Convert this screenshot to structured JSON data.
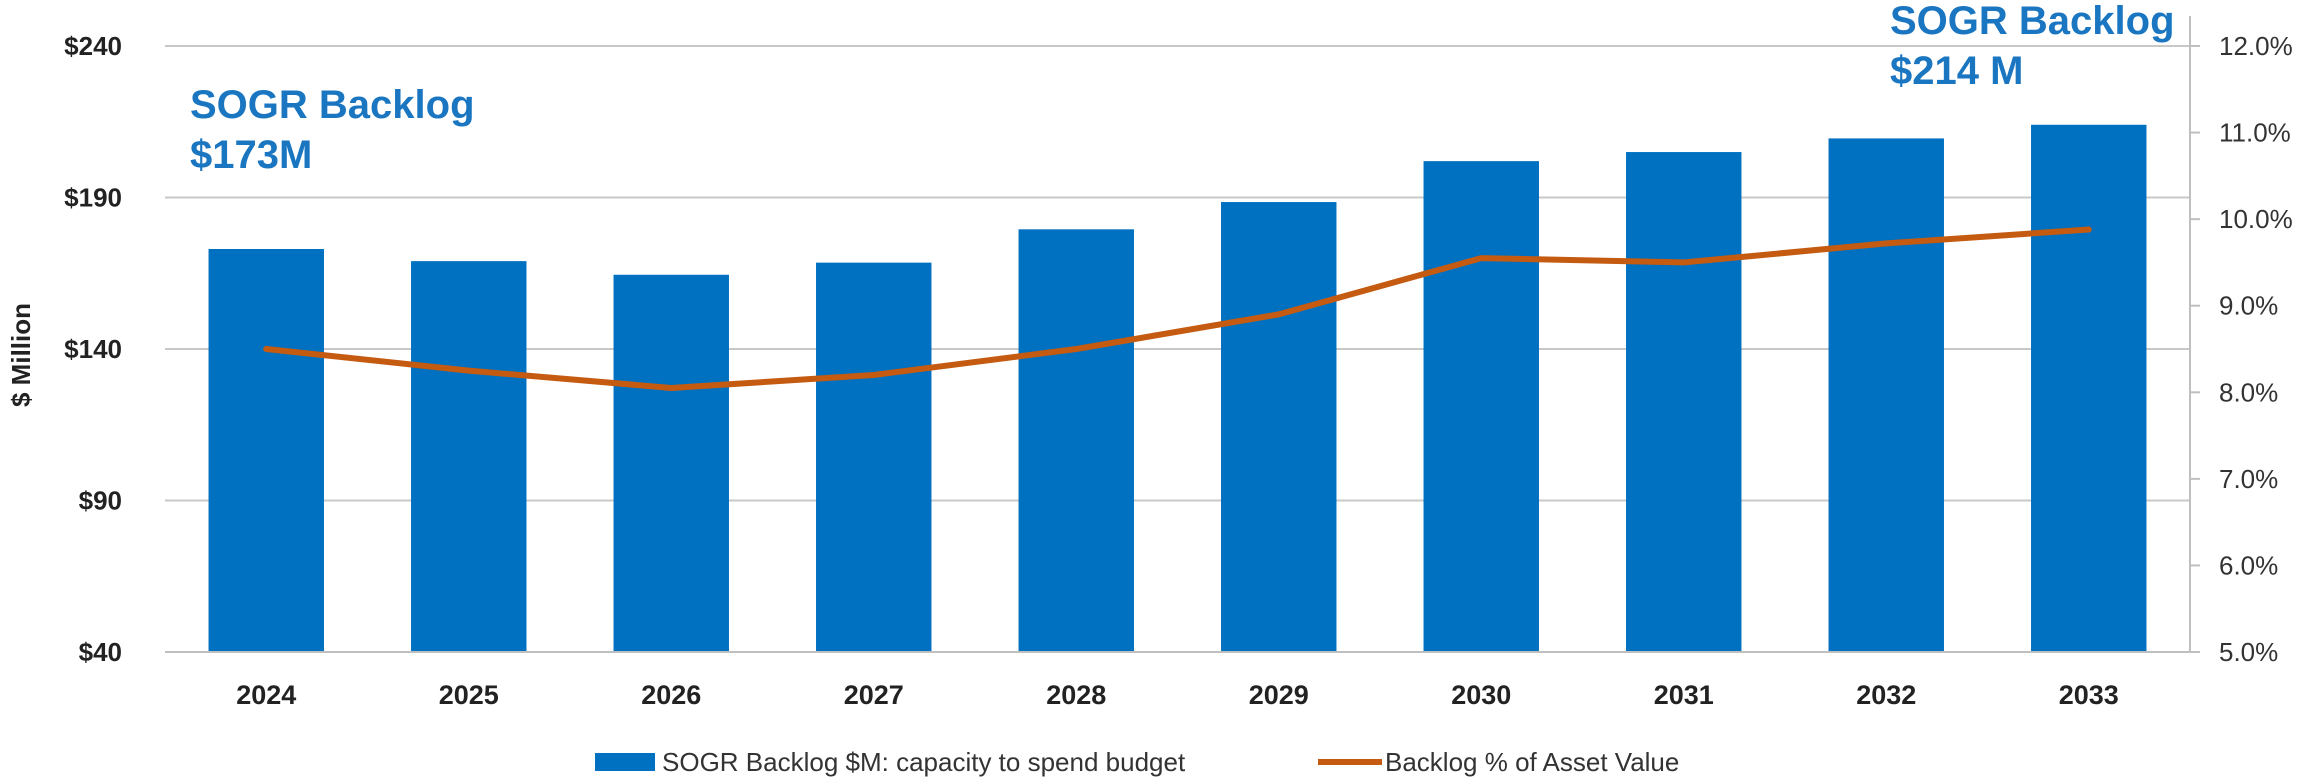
{
  "chart_data": {
    "type": "bar",
    "categories": [
      "2024",
      "2025",
      "2026",
      "2027",
      "2028",
      "2029",
      "2030",
      "2031",
      "2032",
      "2033"
    ],
    "series": [
      {
        "name": "SOGR Backlog $M: capacity to spend budget",
        "type": "bar",
        "axis": "left",
        "color": "#0070c0",
        "values": [
          173,
          169,
          164.5,
          168.5,
          179.5,
          188.5,
          202,
          205,
          209.5,
          214
        ]
      },
      {
        "name": "Backlog % of Asset Value",
        "type": "line",
        "axis": "right",
        "color": "#c55a11",
        "values": [
          8.5,
          8.25,
          8.05,
          8.2,
          8.5,
          8.9,
          9.55,
          9.5,
          9.72,
          9.88
        ]
      }
    ],
    "ylabel": "$ Million",
    "ylim": [
      40,
      240
    ],
    "yticks": [
      40,
      90,
      140,
      190,
      240
    ],
    "ytick_labels": [
      "$40",
      "$90",
      "$140",
      "$190",
      "$240"
    ],
    "y2lim": [
      5.0,
      12.0
    ],
    "y2ticks": [
      5,
      6,
      7,
      8,
      9,
      10,
      11,
      12
    ],
    "y2tick_labels": [
      "5.0%",
      "6.0%",
      "7.0%",
      "8.0%",
      "9.0%",
      "10.0%",
      "11.0%",
      "12.0%"
    ],
    "grid": "horizontal",
    "legend_position": "bottom",
    "annotations": [
      {
        "line1": "SOGR Backlog",
        "line2": "$173M",
        "anchor": "2024"
      },
      {
        "line1": "SOGR Backlog",
        "line2": "$214 M",
        "anchor": "2033"
      }
    ]
  }
}
